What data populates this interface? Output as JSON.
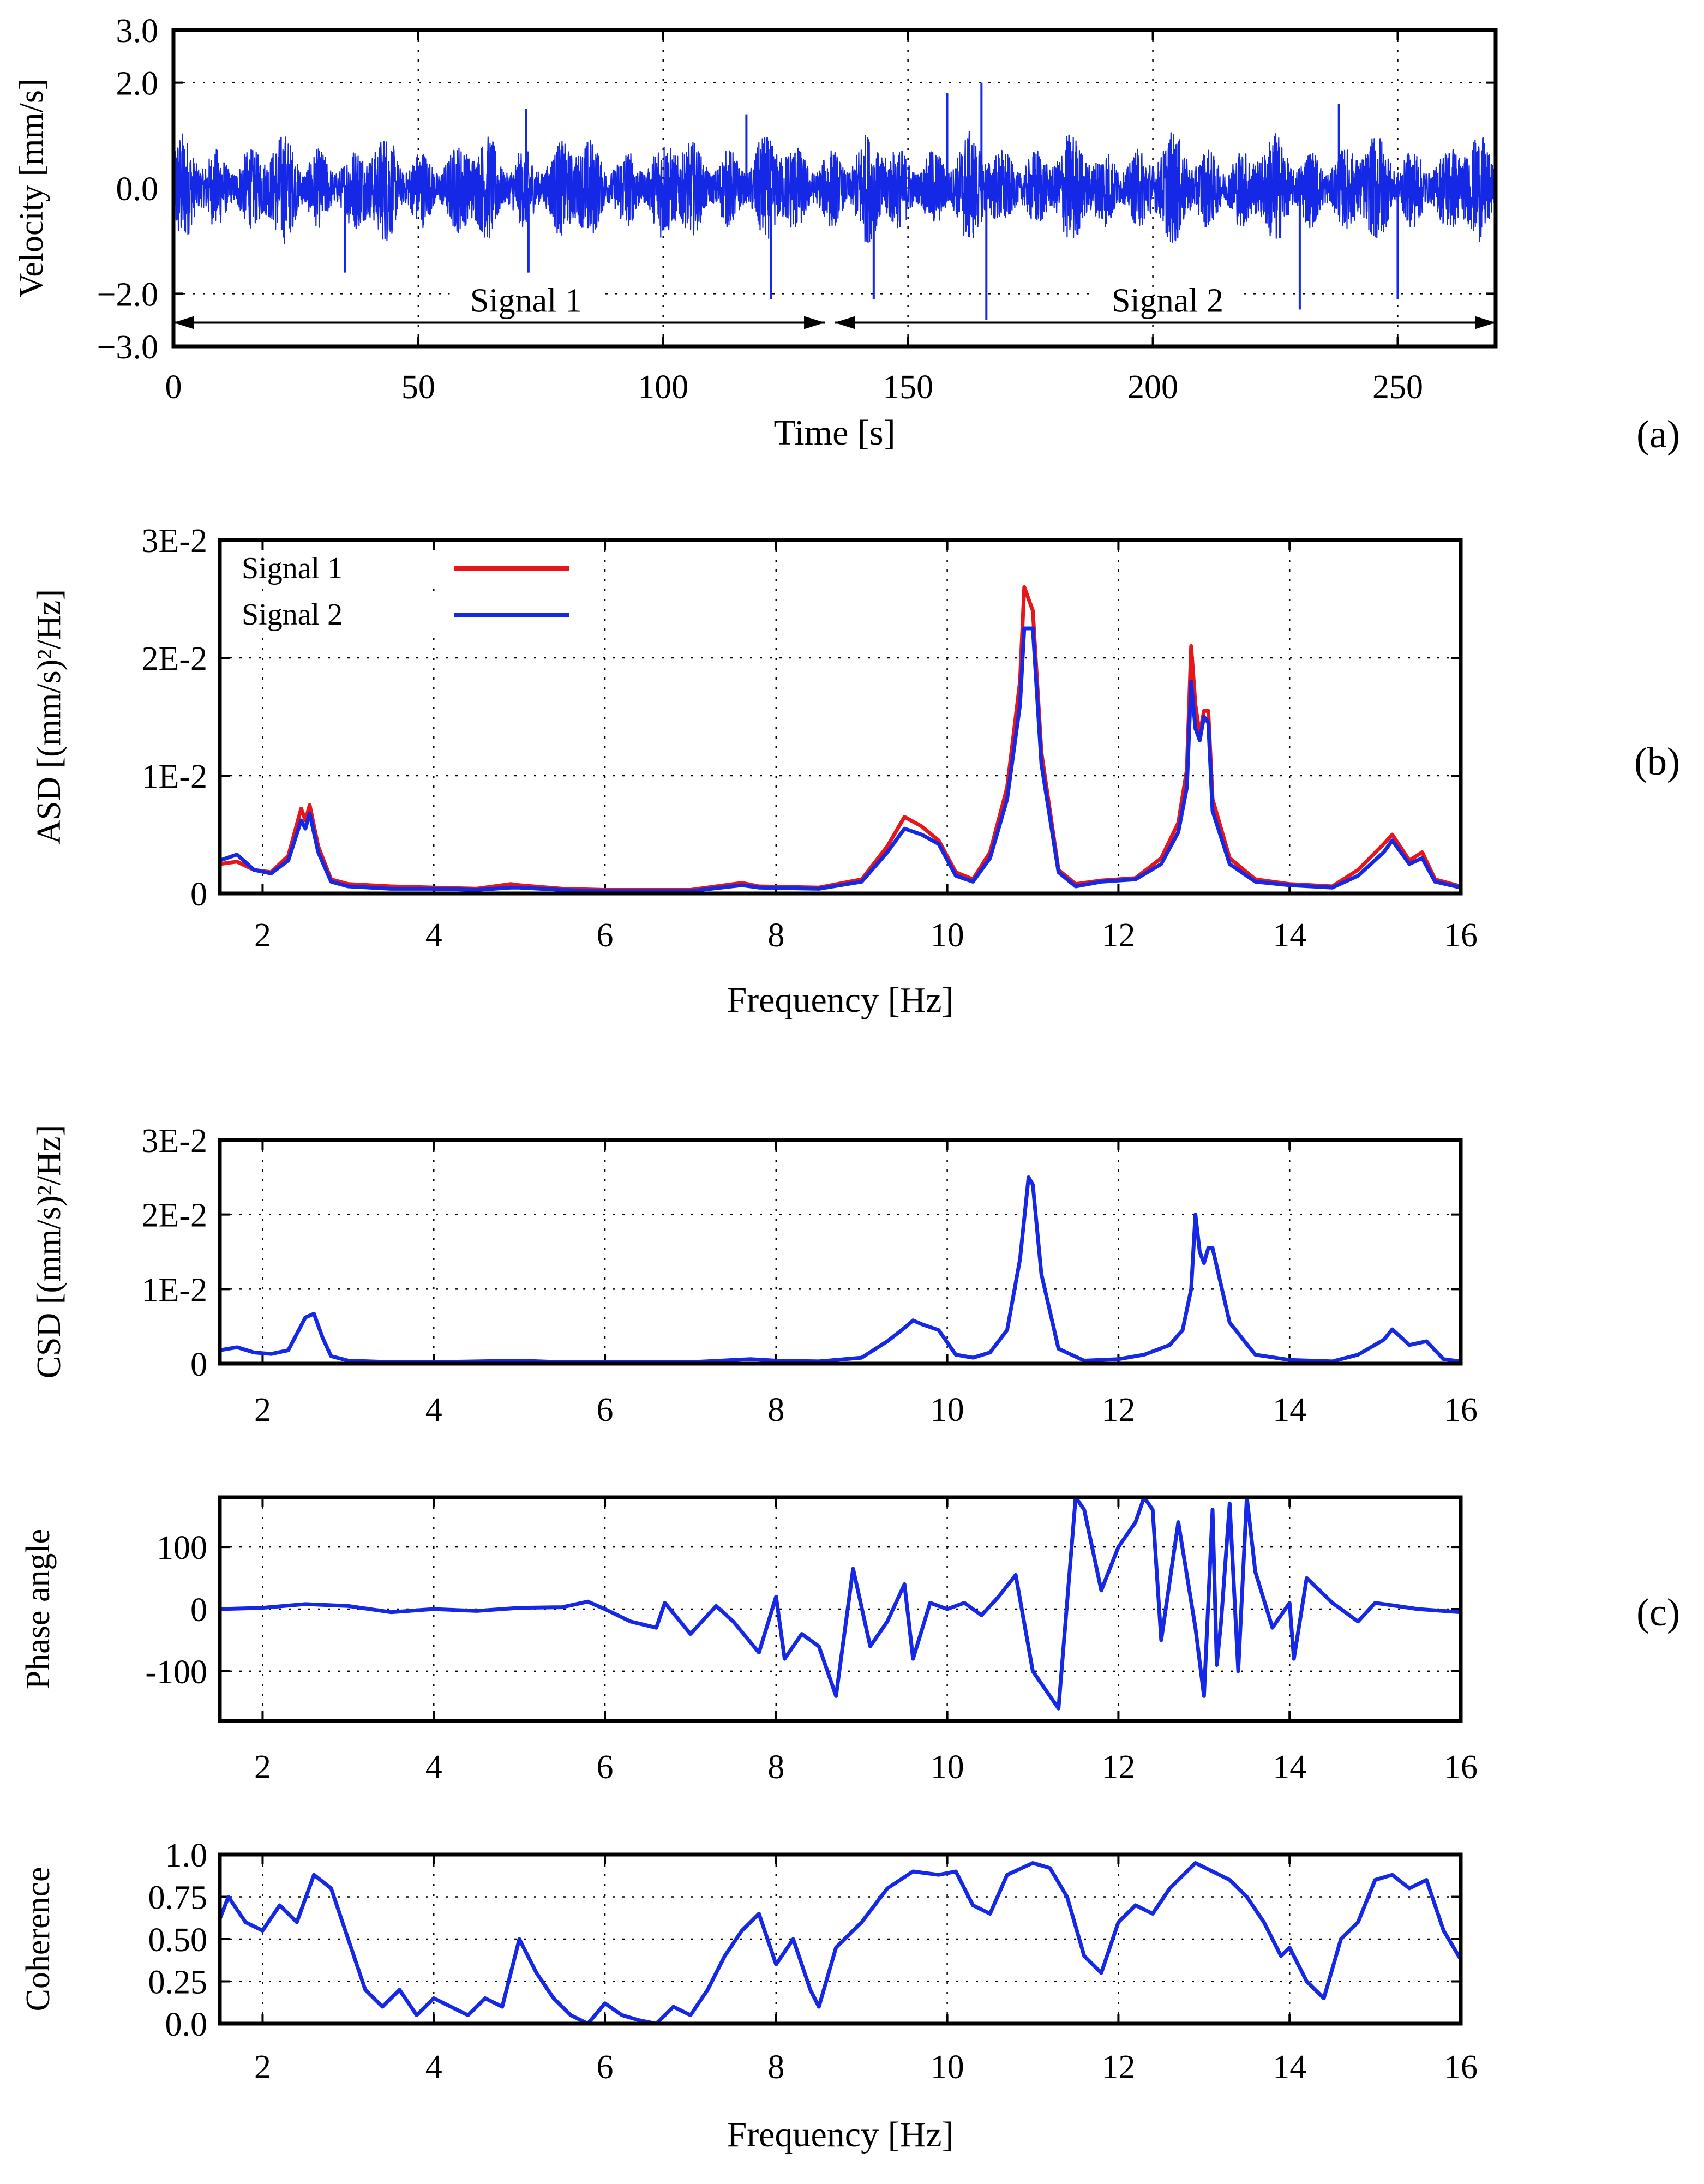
{
  "panel_labels": {
    "a": "(a)",
    "b": "(b)",
    "c": "(c)"
  },
  "colors": {
    "signal1": "#e8151b",
    "signal2": "#1428e6"
  },
  "chart_data": [
    {
      "id": "velocity",
      "type": "line",
      "title": "",
      "xlabel": "Time [s]",
      "ylabel": "Velocity [mm/s]",
      "xlim": [
        0,
        270
      ],
      "ylim": [
        -3.0,
        3.0
      ],
      "xticks": [
        0,
        50,
        100,
        150,
        200,
        250
      ],
      "yticks": [
        -3.0,
        -2.0,
        0.0,
        2.0,
        3.0
      ],
      "ytick_labels": [
        "−3.0",
        "−2.0",
        "0.0",
        "2.0",
        "3.0"
      ],
      "grid_x": [
        50,
        100,
        150,
        200,
        250
      ],
      "grid_y": [
        -2.0,
        2.0
      ],
      "signal": "dense random velocity trace, amplitude mostly within ±1.0 mm/s with spikes up to about 2.0 mm/s",
      "spikes": [
        {
          "t": 35,
          "v": -1.6
        },
        {
          "t": 72,
          "v": 1.5
        },
        {
          "t": 72.5,
          "v": -1.6
        },
        {
          "t": 117,
          "v": 1.4
        },
        {
          "t": 122,
          "v": -2.1
        },
        {
          "t": 143,
          "v": -2.1
        },
        {
          "t": 158,
          "v": 1.8
        },
        {
          "t": 165,
          "v": 2.0
        },
        {
          "t": 166,
          "v": -2.5
        },
        {
          "t": 230,
          "v": -2.3
        },
        {
          "t": 238,
          "v": 1.6
        },
        {
          "t": 250,
          "v": -2.1
        }
      ],
      "annotations": [
        {
          "text": "Signal 1",
          "from": 0,
          "to": 133
        },
        {
          "text": "Signal 2",
          "from": 135,
          "to": 270
        }
      ],
      "series": [
        {
          "name": "velocity",
          "color": "#1428e6"
        }
      ]
    },
    {
      "id": "asd",
      "type": "line",
      "xlabel": "Frequency [Hz]",
      "ylabel": "ASD [(mm/s)²/Hz]",
      "xlim": [
        1.5,
        16
      ],
      "ylim": [
        0,
        0.03
      ],
      "xticks": [
        2,
        4,
        6,
        8,
        10,
        12,
        14,
        16
      ],
      "yticks": [
        0,
        0.01,
        0.02,
        0.03
      ],
      "ytick_labels": [
        "0",
        "1E-2",
        "2E-2",
        "3E-2"
      ],
      "grid": true,
      "legend": "top-left",
      "series": [
        {
          "name": "Signal 1",
          "color": "#e8151b",
          "x": [
            1.5,
            1.7,
            1.9,
            2.1,
            2.3,
            2.45,
            2.5,
            2.55,
            2.65,
            2.8,
            3.0,
            3.5,
            4.0,
            4.5,
            4.9,
            5.0,
            5.5,
            6.0,
            7.0,
            7.6,
            7.8,
            8.5,
            9.0,
            9.3,
            9.5,
            9.7,
            9.9,
            10.1,
            10.3,
            10.5,
            10.7,
            10.85,
            10.9,
            11.0,
            11.1,
            11.3,
            11.5,
            11.8,
            12.2,
            12.5,
            12.7,
            12.8,
            12.85,
            12.9,
            12.95,
            13.0,
            13.05,
            13.1,
            13.3,
            13.6,
            14.0,
            14.5,
            14.8,
            15.1,
            15.2,
            15.4,
            15.55,
            15.7,
            16.0
          ],
          "y": [
            0.0025,
            0.0027,
            0.002,
            0.0018,
            0.0032,
            0.0072,
            0.0062,
            0.0075,
            0.004,
            0.0012,
            0.0008,
            0.0006,
            0.0005,
            0.0004,
            0.0008,
            0.0007,
            0.0004,
            0.0003,
            0.0003,
            0.0009,
            0.0006,
            0.0005,
            0.0012,
            0.004,
            0.0065,
            0.0057,
            0.0045,
            0.0018,
            0.0012,
            0.0035,
            0.009,
            0.018,
            0.026,
            0.024,
            0.012,
            0.002,
            0.0008,
            0.0011,
            0.0013,
            0.003,
            0.006,
            0.0105,
            0.021,
            0.016,
            0.0135,
            0.0155,
            0.0155,
            0.008,
            0.003,
            0.0012,
            0.0008,
            0.0006,
            0.002,
            0.0042,
            0.005,
            0.0028,
            0.0035,
            0.0012,
            0.0006
          ]
        },
        {
          "name": "Signal 2",
          "color": "#1428e6",
          "x": [
            1.5,
            1.7,
            1.9,
            2.1,
            2.3,
            2.45,
            2.5,
            2.55,
            2.65,
            2.8,
            3.0,
            3.5,
            4.0,
            4.5,
            4.9,
            5.0,
            5.5,
            6.0,
            7.0,
            7.6,
            7.8,
            8.5,
            9.0,
            9.3,
            9.5,
            9.7,
            9.9,
            10.1,
            10.3,
            10.5,
            10.7,
            10.85,
            10.9,
            11.0,
            11.1,
            11.3,
            11.5,
            11.8,
            12.2,
            12.5,
            12.7,
            12.8,
            12.85,
            12.9,
            12.95,
            13.0,
            13.05,
            13.1,
            13.3,
            13.6,
            14.0,
            14.5,
            14.8,
            15.1,
            15.2,
            15.4,
            15.55,
            15.7,
            16.0
          ],
          "y": [
            0.0028,
            0.0033,
            0.002,
            0.0017,
            0.0028,
            0.0062,
            0.0055,
            0.0068,
            0.0035,
            0.001,
            0.0006,
            0.0004,
            0.0004,
            0.0003,
            0.0005,
            0.0005,
            0.0003,
            0.0002,
            0.0002,
            0.0007,
            0.0005,
            0.0004,
            0.001,
            0.0035,
            0.0055,
            0.005,
            0.0042,
            0.0015,
            0.001,
            0.003,
            0.008,
            0.016,
            0.0225,
            0.0225,
            0.011,
            0.0018,
            0.0006,
            0.001,
            0.0012,
            0.0025,
            0.0052,
            0.009,
            0.018,
            0.014,
            0.013,
            0.015,
            0.0145,
            0.007,
            0.0025,
            0.001,
            0.0007,
            0.0005,
            0.0015,
            0.0035,
            0.0045,
            0.0025,
            0.003,
            0.001,
            0.0005
          ]
        }
      ]
    },
    {
      "id": "csd",
      "type": "line",
      "xlabel": "",
      "ylabel": "CSD [(mm/s)²/Hz]",
      "xlim": [
        1.5,
        16
      ],
      "ylim": [
        0,
        0.03
      ],
      "xticks": [
        2,
        4,
        6,
        8,
        10,
        12,
        14,
        16
      ],
      "yticks": [
        0,
        0.01,
        0.02,
        0.03
      ],
      "ytick_labels": [
        "0",
        "1E-2",
        "2E-2",
        "3E-2"
      ],
      "grid": true,
      "series": [
        {
          "name": "CSD",
          "color": "#1428e6",
          "x": [
            1.5,
            1.7,
            1.9,
            2.1,
            2.3,
            2.5,
            2.6,
            2.7,
            2.8,
            3.0,
            3.5,
            4.0,
            5.0,
            5.5,
            6.0,
            7.0,
            7.7,
            8.0,
            8.5,
            9.0,
            9.3,
            9.5,
            9.6,
            9.7,
            9.9,
            10.1,
            10.3,
            10.5,
            10.7,
            10.85,
            10.95,
            11.0,
            11.1,
            11.3,
            11.6,
            12.0,
            12.3,
            12.6,
            12.75,
            12.85,
            12.9,
            12.95,
            13.0,
            13.05,
            13.1,
            13.3,
            13.6,
            14.0,
            14.5,
            14.8,
            15.1,
            15.2,
            15.4,
            15.6,
            15.8,
            16.0
          ],
          "y": [
            0.0018,
            0.0022,
            0.0015,
            0.0013,
            0.0018,
            0.0062,
            0.0067,
            0.0035,
            0.001,
            0.0004,
            0.0002,
            0.0002,
            0.0004,
            0.0002,
            0.0002,
            0.0002,
            0.0006,
            0.0004,
            0.0003,
            0.0008,
            0.003,
            0.0048,
            0.0058,
            0.0053,
            0.0045,
            0.0012,
            0.0008,
            0.0015,
            0.0045,
            0.014,
            0.025,
            0.024,
            0.012,
            0.002,
            0.0004,
            0.0006,
            0.0012,
            0.0025,
            0.0045,
            0.01,
            0.02,
            0.015,
            0.0135,
            0.0155,
            0.0155,
            0.0055,
            0.0012,
            0.0005,
            0.0003,
            0.0012,
            0.0032,
            0.0046,
            0.0025,
            0.003,
            0.0006,
            0.0003
          ]
        }
      ]
    },
    {
      "id": "phase",
      "type": "line",
      "xlabel": "",
      "ylabel": "Phase angle",
      "xlim": [
        1.5,
        16
      ],
      "ylim": [
        -180,
        180
      ],
      "xticks": [
        2,
        4,
        6,
        8,
        10,
        12,
        14,
        16
      ],
      "yticks": [
        -100,
        0,
        100
      ],
      "ytick_labels": [
        "-100",
        "0",
        "100"
      ],
      "grid": true,
      "series": [
        {
          "name": "Phase angle",
          "color": "#1428e6",
          "x": [
            1.5,
            2.0,
            2.5,
            3.0,
            3.5,
            4.0,
            4.5,
            5.0,
            5.5,
            5.8,
            6.0,
            6.3,
            6.6,
            6.7,
            7.0,
            7.3,
            7.5,
            7.8,
            8.0,
            8.1,
            8.3,
            8.5,
            8.7,
            8.9,
            9.1,
            9.3,
            9.5,
            9.6,
            9.8,
            10.0,
            10.2,
            10.4,
            10.6,
            10.8,
            11.0,
            11.3,
            11.5,
            11.6,
            11.8,
            12.0,
            12.2,
            12.3,
            12.4,
            12.5,
            12.7,
            12.9,
            13.0,
            13.1,
            13.15,
            13.2,
            13.3,
            13.4,
            13.5,
            13.6,
            13.8,
            14.0,
            14.05,
            14.2,
            14.5,
            14.8,
            15.0,
            15.5,
            16.0
          ],
          "y": [
            0,
            2,
            8,
            5,
            -5,
            0,
            -3,
            2,
            3,
            12,
            0,
            -20,
            -30,
            10,
            -40,
            5,
            -20,
            -70,
            20,
            -80,
            -40,
            -60,
            -140,
            65,
            -60,
            -20,
            40,
            -80,
            10,
            0,
            10,
            -10,
            20,
            55,
            -100,
            -160,
            180,
            160,
            30,
            100,
            140,
            180,
            160,
            -50,
            140,
            -30,
            -140,
            160,
            -90,
            -20,
            170,
            -100,
            180,
            60,
            -30,
            10,
            -80,
            50,
            10,
            -20,
            10,
            0,
            -5
          ]
        }
      ]
    },
    {
      "id": "coherence",
      "type": "line",
      "xlabel": "Frequency [Hz]",
      "ylabel": "Coherence",
      "xlim": [
        1.5,
        16
      ],
      "ylim": [
        0,
        1.0
      ],
      "xticks": [
        2,
        4,
        6,
        8,
        10,
        12,
        14,
        16
      ],
      "yticks": [
        0,
        0.25,
        0.5,
        0.75,
        1.0
      ],
      "ytick_labels": [
        "0.0",
        "0.25",
        "0.50",
        "0.75",
        "1.0"
      ],
      "grid": true,
      "series": [
        {
          "name": "Coherence",
          "color": "#1428e6",
          "x": [
            1.5,
            1.6,
            1.8,
            2.0,
            2.2,
            2.4,
            2.6,
            2.8,
            3.0,
            3.2,
            3.4,
            3.6,
            3.8,
            4.0,
            4.2,
            4.4,
            4.6,
            4.8,
            5.0,
            5.2,
            5.4,
            5.6,
            5.8,
            6.0,
            6.2,
            6.4,
            6.6,
            6.8,
            7.0,
            7.2,
            7.4,
            7.6,
            7.8,
            8.0,
            8.2,
            8.4,
            8.5,
            8.7,
            9.0,
            9.3,
            9.6,
            9.9,
            10.1,
            10.3,
            10.5,
            10.7,
            11.0,
            11.2,
            11.4,
            11.6,
            11.8,
            12.0,
            12.2,
            12.4,
            12.6,
            12.9,
            13.1,
            13.3,
            13.5,
            13.7,
            13.9,
            14.0,
            14.2,
            14.4,
            14.6,
            14.8,
            15.0,
            15.2,
            15.4,
            15.6,
            15.8,
            16.0
          ],
          "y": [
            0.62,
            0.75,
            0.6,
            0.55,
            0.7,
            0.6,
            0.88,
            0.8,
            0.5,
            0.2,
            0.1,
            0.2,
            0.05,
            0.15,
            0.1,
            0.05,
            0.15,
            0.1,
            0.5,
            0.3,
            0.15,
            0.05,
            0.0,
            0.12,
            0.05,
            0.02,
            0.0,
            0.1,
            0.05,
            0.2,
            0.4,
            0.55,
            0.65,
            0.35,
            0.5,
            0.2,
            0.1,
            0.45,
            0.6,
            0.8,
            0.9,
            0.88,
            0.9,
            0.7,
            0.65,
            0.88,
            0.95,
            0.92,
            0.75,
            0.4,
            0.3,
            0.6,
            0.7,
            0.65,
            0.8,
            0.95,
            0.9,
            0.85,
            0.75,
            0.6,
            0.4,
            0.45,
            0.25,
            0.15,
            0.5,
            0.6,
            0.85,
            0.88,
            0.8,
            0.85,
            0.55,
            0.38
          ]
        }
      ]
    }
  ]
}
